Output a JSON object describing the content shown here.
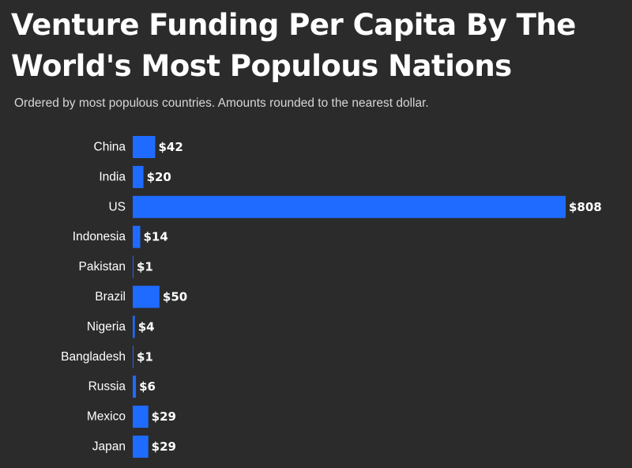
{
  "chart_data": {
    "type": "bar",
    "orientation": "horizontal",
    "title": "Venture Funding Per Capita By The World's Most Populous Nations",
    "subtitle": "Ordered by most populous countries. Amounts rounded to the nearest dollar.",
    "categories": [
      "China",
      "India",
      "US",
      "Indonesia",
      "Pakistan",
      "Brazil",
      "Nigeria",
      "Bangladesh",
      "Russia",
      "Mexico",
      "Japan"
    ],
    "values": [
      42,
      20,
      808,
      14,
      1,
      50,
      4,
      1,
      6,
      29,
      29
    ],
    "value_labels": [
      "$42",
      "$20",
      "$808",
      "$14",
      "$1",
      "$50",
      "$4",
      "$1",
      "$6",
      "$29",
      "$29"
    ],
    "xlim": [
      0,
      808
    ],
    "grid": false,
    "legend": "none",
    "bar_color": "#1f6bff",
    "background_color": "#2b2b2b"
  }
}
